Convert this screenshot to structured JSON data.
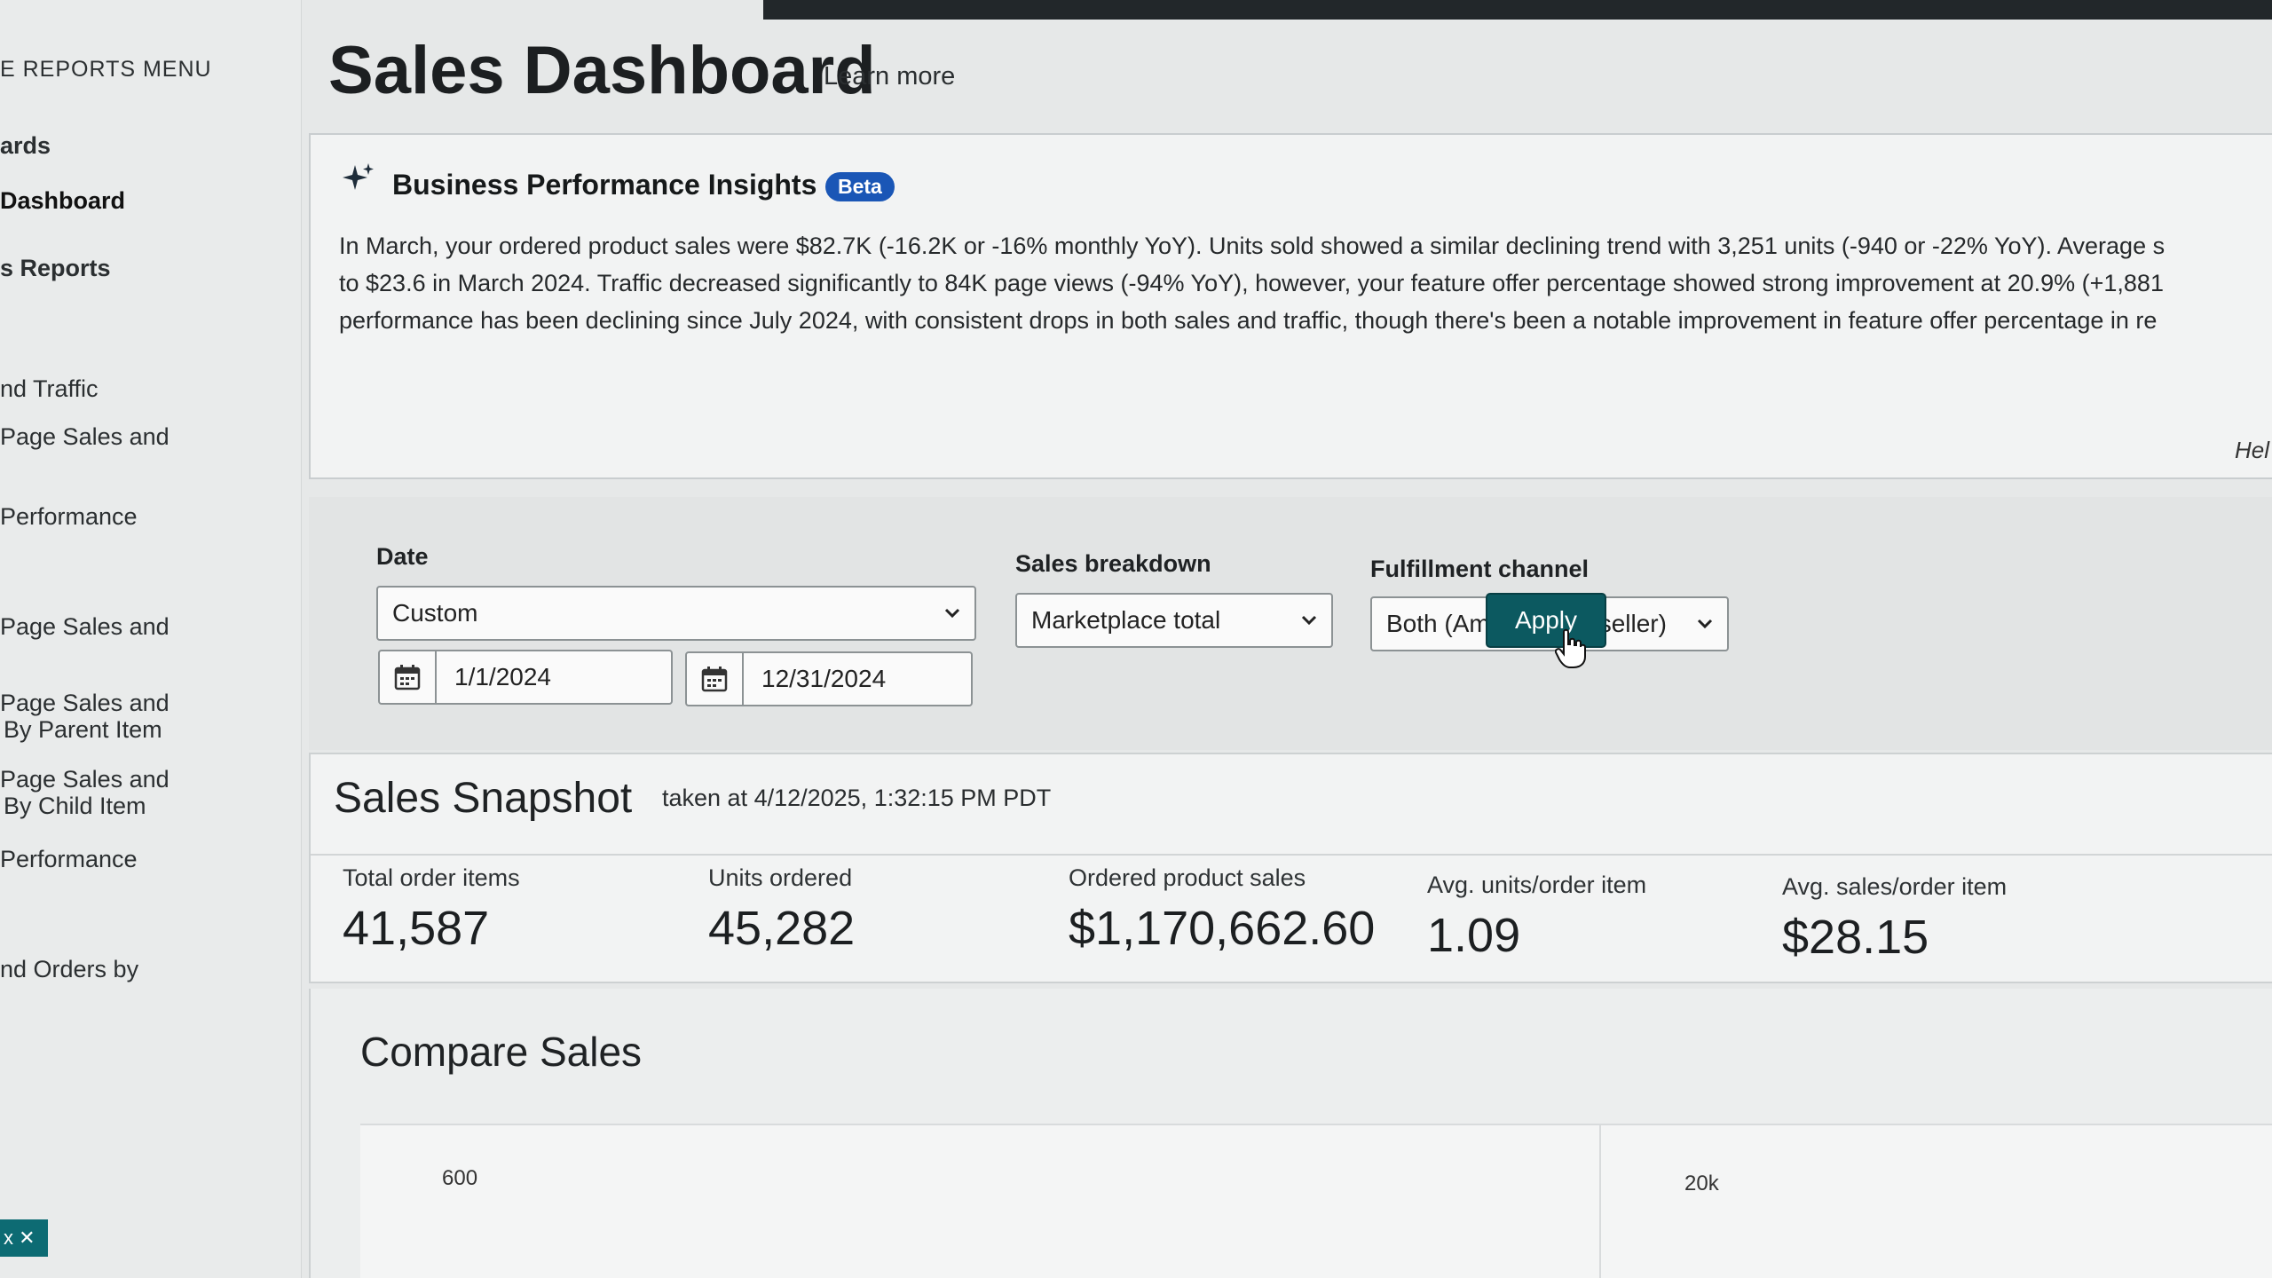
{
  "sidebar": {
    "menu_title": "E REPORTS MENU",
    "items": [
      {
        "label": "ards"
      },
      {
        "label": "Dashboard"
      },
      {
        "label": "s Reports"
      },
      {
        "label": "nd Traffic"
      },
      {
        "label": "Page Sales and"
      },
      {
        "label": "Performance"
      },
      {
        "label": "Page Sales and"
      },
      {
        "label": "Page Sales and"
      },
      {
        "label": "By Parent Item"
      },
      {
        "label": "Page Sales and"
      },
      {
        "label": "By Child Item"
      },
      {
        "label": "Performance"
      },
      {
        "label": "nd Orders by"
      }
    ],
    "chip_label": "x ✕"
  },
  "header": {
    "title": "Sales Dashboard",
    "learn_more": "Learn more"
  },
  "insights": {
    "title": "Business Performance Insights",
    "badge": "Beta",
    "text": "In March, your ordered product sales were $82.7K (-16.2K or -16% monthly YoY). Units sold showed a similar declining trend with 3,251 units (-940 or -22% YoY). Average s\nto $23.6 in March 2024. Traffic decreased significantly to 84K page views (-94% YoY), however, your feature offer percentage showed strong improvement at 20.9% (+1,881\nperformance has been declining since July 2024, with consistent drops in both sales and traffic, though there's been a notable improvement in feature offer percentage in re",
    "help_label": "Hel"
  },
  "filters": {
    "date_label": "Date",
    "date_select": "Custom",
    "start_date": "1/1/2024",
    "end_date": "12/31/2024",
    "breakdown_label": "Sales breakdown",
    "breakdown_select": "Marketplace total",
    "channel_label": "Fulfillment channel",
    "channel_select": "Both (Amazon and seller)",
    "apply_label": "Apply"
  },
  "snapshot": {
    "title": "Sales Snapshot",
    "taken_at": "taken at 4/12/2025, 1:32:15 PM PDT",
    "metrics": [
      {
        "label": "Total order items",
        "value": "41,587"
      },
      {
        "label": "Units ordered",
        "value": "45,282"
      },
      {
        "label": "Ordered product sales",
        "value": "$1,170,662.60"
      },
      {
        "label": "Avg. units/order item",
        "value": "1.09"
      },
      {
        "label": "Avg. sales/order item",
        "value": "$28.15"
      }
    ]
  },
  "compare": {
    "title": "Compare Sales",
    "left_axis_top": "600",
    "right_axis_top": "20k"
  },
  "colors": {
    "primary_button": "#0c5960",
    "beta_badge": "#1a56b6"
  }
}
